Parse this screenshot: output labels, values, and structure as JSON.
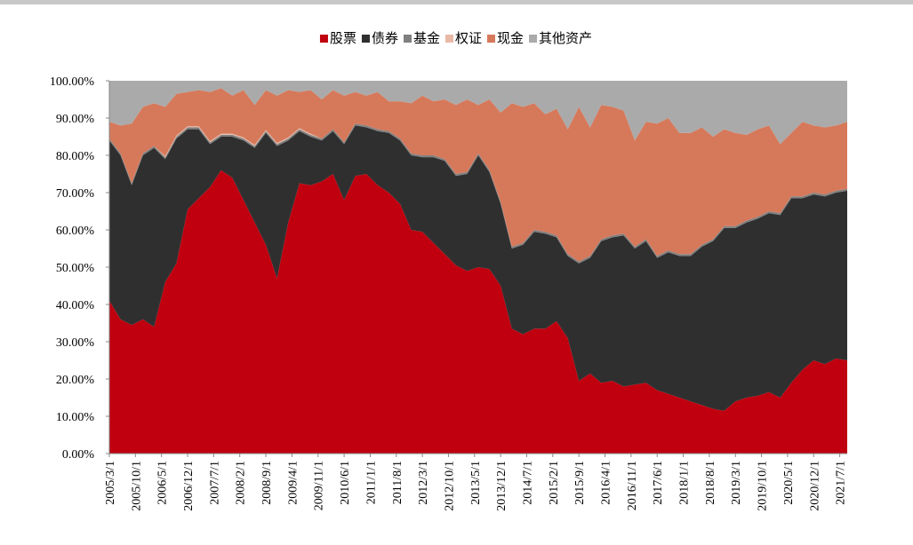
{
  "chart_data": {
    "type": "stacked_area",
    "x": [
      "2005/3/1",
      "2005/6/1",
      "2005/9/1",
      "2005/12/1",
      "2006/3/1",
      "2006/6/1",
      "2006/9/1",
      "2006/12/1",
      "2007/3/1",
      "2007/6/1",
      "2007/9/1",
      "2007/12/1",
      "2008/3/1",
      "2008/6/1",
      "2008/9/1",
      "2008/12/1",
      "2009/3/1",
      "2009/6/1",
      "2009/9/1",
      "2009/12/1",
      "2010/3/1",
      "2010/6/1",
      "2010/9/1",
      "2010/12/1",
      "2011/3/1",
      "2011/6/1",
      "2011/9/1",
      "2011/12/1",
      "2012/3/1",
      "2012/6/1",
      "2012/9/1",
      "2012/12/1",
      "2013/3/1",
      "2013/6/1",
      "2013/9/1",
      "2013/12/1",
      "2014/3/1",
      "2014/6/1",
      "2014/9/1",
      "2014/12/1",
      "2015/3/1",
      "2015/6/1",
      "2015/9/1",
      "2015/12/1",
      "2016/3/1",
      "2016/6/1",
      "2016/9/1",
      "2016/12/1",
      "2017/3/1",
      "2017/6/1",
      "2017/9/1",
      "2017/12/1",
      "2018/3/1",
      "2018/6/1",
      "2018/9/1",
      "2018/12/1",
      "2019/3/1",
      "2019/6/1",
      "2019/9/1",
      "2019/12/1",
      "2020/3/1",
      "2020/6/1",
      "2020/9/1",
      "2020/12/1",
      "2021/3/1",
      "2021/6/1",
      "2021/9/1"
    ],
    "series": [
      {
        "name": "股票",
        "color": "#c0000f",
        "values": [
          41,
          36,
          34.5,
          36,
          34,
          46,
          51,
          65.5,
          68.5,
          71.5,
          76,
          74,
          68,
          62,
          56,
          47,
          62,
          72.5,
          72,
          73,
          75,
          68,
          74.5,
          75,
          72,
          70,
          67,
          60,
          59.5,
          56.5,
          53.5,
          50.5,
          49,
          50,
          49.5,
          45,
          33.5,
          32,
          33.5,
          33.5,
          35.5,
          31,
          19.5,
          21.5,
          19,
          19.5,
          18,
          18.5,
          19,
          17,
          16,
          15,
          14,
          13,
          12,
          11.5,
          14,
          15,
          15.5,
          16.5,
          15,
          19,
          22.5,
          25,
          24,
          25.5,
          25
        ]
      },
      {
        "name": "债券",
        "color": "#2f2f2f",
        "values": [
          43,
          44,
          37.5,
          44,
          48,
          33,
          33.5,
          21.5,
          18.5,
          11.5,
          9,
          11,
          16,
          20,
          30,
          35.5,
          22,
          14,
          13,
          11,
          11.5,
          15,
          13.5,
          12.5,
          14.5,
          16,
          17,
          20,
          20,
          23,
          25,
          24,
          26,
          30,
          26,
          22,
          21.5,
          24,
          26,
          25.5,
          22.5,
          22,
          31.5,
          31,
          38,
          38.5,
          40.5,
          36.5,
          38,
          35.5,
          38,
          38,
          39,
          42.5,
          45,
          49,
          46.5,
          47,
          47.5,
          48,
          49,
          49.5,
          46,
          44.5,
          45,
          44.5,
          45.5
        ]
      },
      {
        "name": "基金",
        "color": "#7f7f7f",
        "values": [
          0.5,
          0.5,
          0.5,
          0.5,
          0.5,
          0.5,
          0.5,
          0.5,
          0.5,
          0.5,
          0.5,
          0.5,
          0.5,
          0.5,
          0.5,
          0.5,
          0.5,
          0.5,
          0.5,
          0.5,
          0.5,
          0.5,
          0.5,
          0.5,
          0.5,
          0.5,
          0.5,
          0.5,
          0.5,
          0.5,
          0.5,
          0.5,
          0.5,
          0.5,
          0.5,
          0.5,
          0.5,
          0.5,
          0.5,
          0.5,
          0.5,
          0.5,
          0.5,
          0.5,
          0.5,
          0.5,
          0.5,
          0.5,
          0.5,
          0.5,
          0.5,
          0.5,
          0.5,
          0.5,
          0.5,
          0.5,
          0.5,
          0.5,
          0.5,
          0.5,
          0.5,
          0.5,
          0.5,
          0.5,
          0.5,
          0.5,
          0.5
        ]
      },
      {
        "name": "权证",
        "color": "#e8b9a6",
        "values": [
          0,
          0,
          0,
          0,
          0,
          0.3,
          0.3,
          0.3,
          0.3,
          0.3,
          0.3,
          0.3,
          0.3,
          0.3,
          0.3,
          0.3,
          0.3,
          0.3,
          0.3,
          0,
          0,
          0,
          0,
          0,
          0,
          0,
          0,
          0,
          0,
          0,
          0,
          0,
          0,
          0,
          0,
          0,
          0,
          0,
          0,
          0,
          0,
          0,
          0,
          0,
          0,
          0,
          0,
          0,
          0,
          0,
          0,
          0,
          0,
          0,
          0,
          0,
          0,
          0,
          0,
          0,
          0,
          0,
          0,
          0,
          0,
          0,
          0
        ]
      },
      {
        "name": "现金",
        "color": "#d6795b",
        "values": [
          4.5,
          7.5,
          16,
          12.5,
          11.5,
          13.2,
          11.2,
          9.2,
          9.7,
          13.2,
          12.2,
          10.2,
          12.7,
          10.7,
          10.7,
          12.7,
          12.7,
          9.7,
          11.7,
          10.5,
          10.5,
          12.5,
          8.5,
          8,
          10,
          8,
          10,
          13.5,
          16,
          14.5,
          16,
          18.5,
          19.5,
          13,
          19,
          24,
          38.5,
          36.5,
          34,
          31.5,
          34,
          33.5,
          41.5,
          34.5,
          36,
          34.5,
          33,
          28.5,
          31.5,
          35.5,
          35.5,
          32.5,
          32.5,
          31.5,
          27.5,
          26,
          25,
          23,
          23.5,
          23,
          18.5,
          17,
          20,
          18,
          18,
          17.5,
          18
        ]
      },
      {
        "name": "其他资产",
        "color": "#aaaaaa",
        "values": [
          11,
          12,
          11.5,
          7,
          6,
          7,
          3.5,
          3,
          2.5,
          3,
          2,
          4,
          2.5,
          6.5,
          2.5,
          4,
          2.5,
          3,
          2.5,
          5,
          2.5,
          4,
          3,
          4,
          3,
          5.5,
          5.5,
          6,
          4,
          5.5,
          5,
          6.5,
          5,
          6.5,
          5,
          8.5,
          6,
          7,
          6,
          9,
          7.5,
          13,
          7,
          12.5,
          6.5,
          7,
          8,
          16,
          11,
          11.5,
          10,
          14,
          14,
          12.5,
          15,
          13,
          14,
          14.5,
          13,
          12,
          17,
          14,
          11,
          12,
          12.5,
          12,
          11
        ]
      }
    ],
    "xlim": [
      "2005/3/1",
      "2021/9/1"
    ],
    "xticks": [
      "2005/3/1",
      "2005/10/1",
      "2006/5/1",
      "2006/12/1",
      "2007/7/1",
      "2008/2/1",
      "2008/9/1",
      "2009/4/1",
      "2009/11/1",
      "2010/6/1",
      "2011/1/1",
      "2011/8/1",
      "2012/3/1",
      "2012/10/1",
      "2013/5/1",
      "2013/12/1",
      "2014/7/1",
      "2015/2/1",
      "2015/9/1",
      "2016/4/1",
      "2016/11/1",
      "2017/6/1",
      "2018/1/1",
      "2018/8/1",
      "2019/3/1",
      "2019/10/1",
      "2020/5/1",
      "2020/12/1",
      "2021/7/1"
    ],
    "ylim": [
      0,
      100
    ],
    "yticks": [
      {
        "value": 0,
        "label": "0.00%"
      },
      {
        "value": 10,
        "label": "10.00%"
      },
      {
        "value": 20,
        "label": "20.00%"
      },
      {
        "value": 30,
        "label": "30.00%"
      },
      {
        "value": 40,
        "label": "40.00%"
      },
      {
        "value": 50,
        "label": "50.00%"
      },
      {
        "value": 60,
        "label": "60.00%"
      },
      {
        "value": 70,
        "label": "70.00%"
      },
      {
        "value": 80,
        "label": "80.00%"
      },
      {
        "value": 90,
        "label": "90.00%"
      },
      {
        "value": 100,
        "label": "100.00%"
      }
    ],
    "legend": "top"
  }
}
